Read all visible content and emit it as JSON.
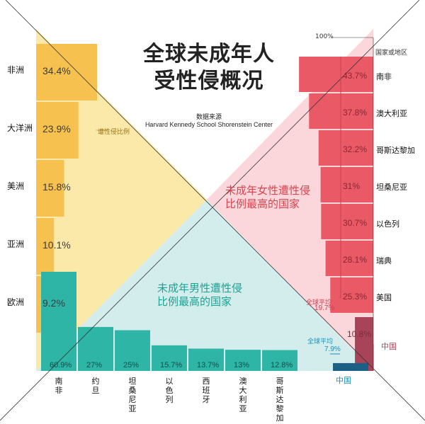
{
  "title_line1": "全球未成年人",
  "title_line2": "受性侵概况",
  "source_label": "数据来源",
  "source_name": "Harvard Kennedy School Shorenstein Center",
  "colors": {
    "regions": "#f6c14f",
    "regions_bg": "#fbe9a9",
    "female": "#e95a66",
    "female_bg": "#fbd7db",
    "male": "#2fb5a6",
    "male_bg": "#d3ecec",
    "china": "#a8445a"
  },
  "chart_data": [
    {
      "type": "bar",
      "series_label": "遭性侵比例",
      "categories": [
        "非洲",
        "大洋洲",
        "美洲",
        "亚洲",
        "欧洲"
      ],
      "values": [
        34.4,
        23.9,
        15.8,
        10.1,
        9.2
      ],
      "labels": [
        "34.4%",
        "23.9%",
        "15.8%",
        "10.1%",
        "9.2%"
      ]
    },
    {
      "type": "bar",
      "title_line1": "未成年女性遭性侵",
      "title_line2": "比例最高的国家",
      "top_label": "100%",
      "column_label": "国家或地区",
      "categories": [
        "南非",
        "澳大利亚",
        "哥斯达黎加",
        "坦桑尼亚",
        "以色列",
        "瑞典",
        "美国"
      ],
      "values": [
        43.7,
        37.8,
        32.2,
        31,
        30.7,
        28.1,
        25.3
      ],
      "labels": [
        "43.7%",
        "37.8%",
        "32.2%",
        "31%",
        "30.7%",
        "28.1%",
        "25.3%"
      ],
      "global_avg_label": "全球平均",
      "global_avg_value": 19.7,
      "global_avg_text": "19.7%",
      "china_label": "中国",
      "china_value": 10.8,
      "china_text": "10.8%"
    },
    {
      "type": "bar",
      "title_line1": "未成年男性遭性侵",
      "title_line2": "比例最高的国家",
      "categories": [
        "南非",
        "约旦",
        "坦桑尼亚",
        "以色列",
        "西班牙",
        "澳大利亚",
        "哥斯达黎加"
      ],
      "values": [
        60.9,
        27,
        25,
        15.7,
        13.7,
        13,
        12.8
      ],
      "labels": [
        "60.9%",
        "27%",
        "25%",
        "15.7%",
        "13.7%",
        "13%",
        "12.8%"
      ],
      "global_avg_label": "全球平均",
      "global_avg_value": 7.9,
      "global_avg_text": "7.9%",
      "china_label": "中国",
      "china_value": 4.8,
      "china_text": "4.8%"
    }
  ]
}
